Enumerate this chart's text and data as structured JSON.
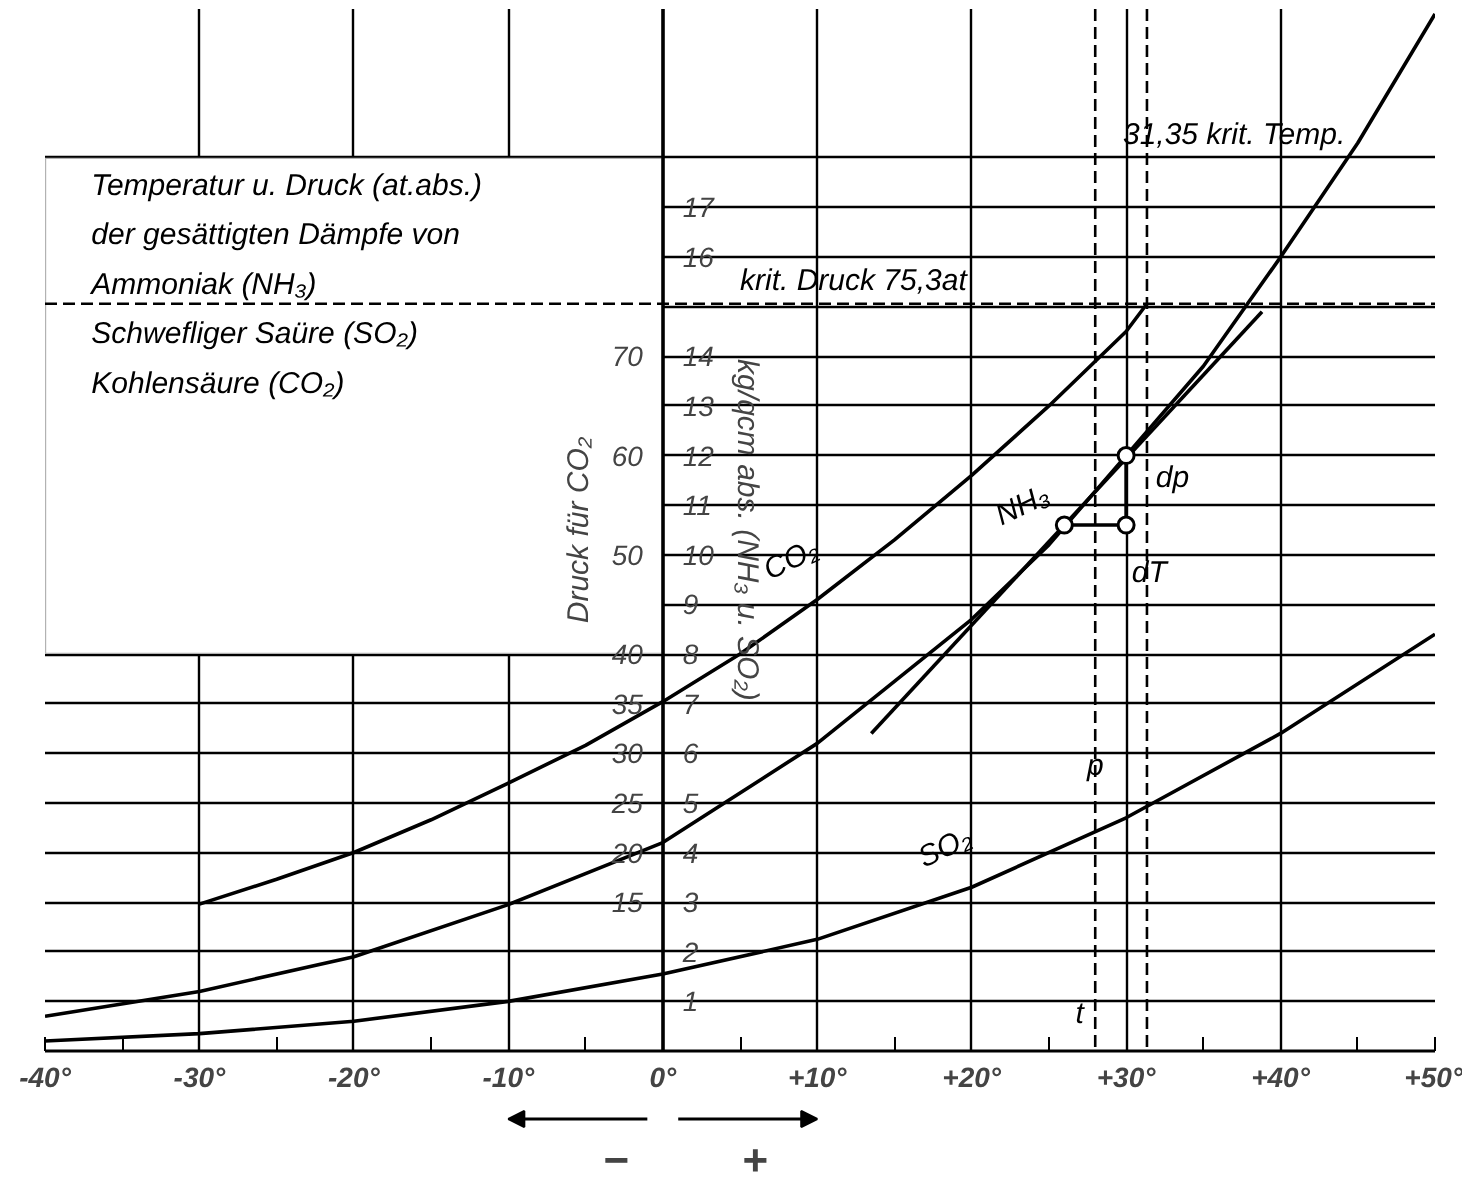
{
  "chart_data": {
    "type": "line",
    "title": "Temperatur u. Druck (at.abs.)\nder gesättigten Dämpfe von",
    "subtitle": "Ammoniak (NH₃)\nSchwefliger Saüre (SO₂)\nKohlensäure (CO₂)",
    "ylabel": "kg/qcm abs. (NH₃ u. SO₂)",
    "y2label": "Druck für CO₂",
    "xlim": [
      -40,
      50
    ],
    "xticks": [
      {
        "value": -40,
        "label": "-40°"
      },
      {
        "value": -35,
        "label": null
      },
      {
        "value": -30,
        "label": "-30°"
      },
      {
        "value": -25,
        "label": null
      },
      {
        "value": -20,
        "label": "-20°"
      },
      {
        "value": -15,
        "label": null
      },
      {
        "value": -10,
        "label": "-10°"
      },
      {
        "value": -5,
        "label": null
      },
      {
        "value": 0,
        "label": "0°"
      },
      {
        "value": 5,
        "label": null
      },
      {
        "value": 10,
        "label": "+10°"
      },
      {
        "value": 15,
        "label": null
      },
      {
        "value": 20,
        "label": "+20°"
      },
      {
        "value": 25,
        "label": null
      },
      {
        "value": 30,
        "label": "+30°"
      },
      {
        "value": 35,
        "label": null
      },
      {
        "value": 40,
        "label": "+40°"
      },
      {
        "value": 45,
        "label": null
      },
      {
        "value": 50,
        "label": "+50°"
      }
    ],
    "ylim": [
      0,
      21
    ],
    "yticks": [
      1,
      2,
      3,
      4,
      5,
      6,
      7,
      8,
      9,
      10,
      11,
      12,
      13,
      14,
      {
        "value": 15,
        "label": null
      },
      16,
      17,
      {
        "value": 18,
        "label": null
      }
    ],
    "y2lim": [
      0,
      105
    ],
    "y2ticks": [
      15,
      20,
      25,
      30,
      35,
      40,
      50,
      60,
      70
    ],
    "grid": true,
    "line_style": "solid",
    "series": [
      {
        "name": "CO₂",
        "axis": "y2",
        "color": "#000000",
        "x": [
          -30,
          -25,
          -20,
          -15,
          -10,
          -5,
          0,
          5,
          10,
          15,
          20,
          25,
          30,
          31.35
        ],
        "values": [
          14.8,
          17.3,
          20,
          23.3,
          27,
          30.8,
          35.2,
          40,
          45.5,
          51.5,
          58,
          65,
          72.5,
          75.3
        ]
      },
      {
        "name": "NH₃",
        "color": "#000000",
        "x": [
          -40,
          -30,
          -20,
          -10,
          0,
          10,
          20,
          25,
          30,
          35,
          40,
          45,
          50
        ],
        "values": [
          0.7,
          1.2,
          1.9,
          2.95,
          4.2,
          6.2,
          8.7,
          10.2,
          12,
          13.8,
          16,
          18.3,
          20.9
        ]
      },
      {
        "name": "SO₂",
        "color": "#000000",
        "x": [
          -40,
          -30,
          -20,
          -10,
          0,
          10,
          20,
          30,
          40,
          50
        ],
        "values": [
          0.2,
          0.35,
          0.6,
          1.0,
          1.55,
          2.25,
          3.3,
          4.7,
          6.4,
          8.4
        ]
      },
      {
        "color": "#000000",
        "x": [
          13.5,
          38.8
        ],
        "values": [
          6.4,
          14.9
        ]
      },
      {
        "color": "#000000",
        "x": [
          26,
          30,
          30
        ],
        "values": [
          10.6,
          10.6,
          12
        ]
      },
      {
        "type": "scatter",
        "marker": "circle",
        "color": "#000000",
        "x": [
          26,
          30,
          30
        ],
        "values": [
          10.6,
          12,
          10.6
        ]
      }
    ],
    "ref_lines": [
      {
        "axis": "y2",
        "value": 75.3,
        "label": "krit. Druck 75,3at",
        "line_style": "dashed"
      },
      {
        "axis": "x",
        "value": 31.35,
        "label": "31,35 krit. Temp.",
        "line_style": "dashed"
      },
      {
        "axis": "x",
        "value": 28,
        "line_style": "dashed"
      }
    ],
    "annotations": [
      {
        "text": "p",
        "x": 28,
        "y": 5.4
      },
      "t",
      "dT",
      "dp",
      "−",
      "+"
    ]
  }
}
